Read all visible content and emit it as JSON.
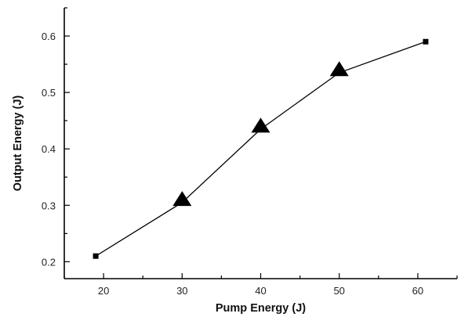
{
  "chart_data": {
    "type": "scatter",
    "title": "",
    "xlabel": "Pump Energy (J)",
    "ylabel": "Output Energy (J)",
    "xlim": [
      15,
      65
    ],
    "ylim": [
      0.17,
      0.65
    ],
    "x_ticks": [
      20,
      30,
      40,
      50,
      60
    ],
    "y_ticks": [
      0.2,
      0.3,
      0.4,
      0.5,
      0.6
    ],
    "x_tick_labels": [
      "20",
      "30",
      "40",
      "50",
      "60"
    ],
    "y_tick_labels": [
      "0.2",
      "0.3",
      "0.4",
      "0.5",
      "0.6"
    ],
    "grid": false,
    "legend": false,
    "series": [
      {
        "marker": "square",
        "line": true,
        "color": "#000000",
        "x": [
          19,
          30,
          40,
          50,
          61
        ],
        "y": [
          0.21,
          0.305,
          0.435,
          0.535,
          0.59
        ]
      },
      {
        "marker": "triangle",
        "line": false,
        "color": "#000000",
        "x": [
          30,
          40,
          50
        ],
        "y": [
          0.31,
          0.44,
          0.54
        ]
      }
    ]
  }
}
